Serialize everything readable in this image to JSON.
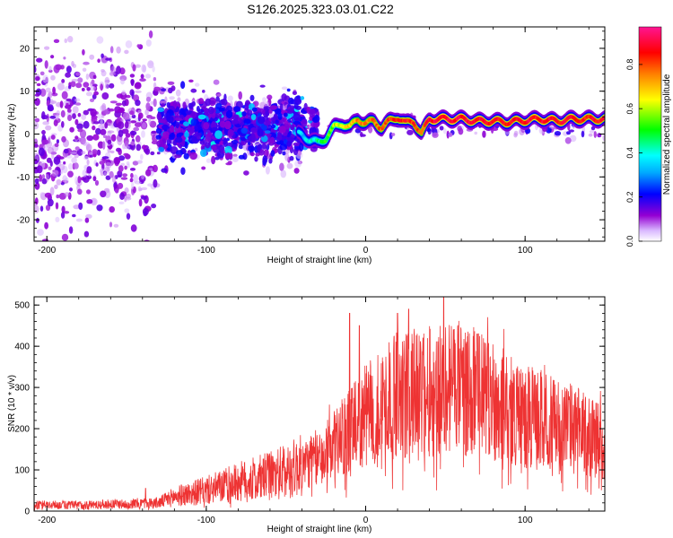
{
  "chart_data": [
    {
      "type": "heatmap",
      "title": "S126.2025.323.03.01.C22",
      "xlabel": "Height of straight line (km)",
      "ylabel": "Frequency (Hz)",
      "xlim": [
        -208,
        150
      ],
      "ylim": [
        -25,
        25
      ],
      "xticks": [
        -200,
        -100,
        0,
        100
      ],
      "xtick_labels": [
        "-200",
        "-100",
        "0",
        "100"
      ],
      "yticks": [
        -20,
        -10,
        0,
        10,
        20
      ],
      "ytick_labels": [
        "-20",
        "-10",
        "0",
        "10",
        "20"
      ],
      "ridge": {
        "x": [
          -40,
          -35,
          -30,
          -25,
          -20,
          -15,
          -10,
          -5,
          0,
          5,
          10,
          15,
          20,
          25,
          30,
          35,
          40,
          50,
          60,
          70,
          80,
          90,
          100,
          110,
          120,
          130,
          140,
          150
        ],
        "freq": [
          0,
          -1.5,
          -2,
          -1,
          1.5,
          2.5,
          1.5,
          3.5,
          2.5,
          3,
          1.5,
          3,
          4,
          2.5,
          3,
          0,
          3.5,
          3.5,
          3.5,
          3,
          3,
          2.8,
          3.2,
          3.5,
          3,
          3.5,
          3.5,
          3.5
        ],
        "amplitude": [
          0.35,
          0.4,
          0.45,
          0.5,
          0.6,
          0.65,
          0.7,
          0.75,
          0.78,
          0.8,
          0.82,
          0.85,
          0.85,
          0.88,
          0.86,
          0.8,
          0.92,
          0.93,
          0.92,
          0.9,
          0.9,
          0.88,
          0.9,
          0.92,
          0.9,
          0.9,
          0.88,
          0.88
        ]
      },
      "colorbar": {
        "label": "Normalized spectral amplitude",
        "range": [
          0,
          0.97
        ],
        "ticks": [
          0.0,
          0.2,
          0.4,
          0.6,
          0.8
        ],
        "tick_labels": [
          "0.0",
          "0.2",
          "0.4",
          "0.6",
          "0.8"
        ],
        "colors": [
          "#ffffff",
          "#9400d3",
          "#0000ff",
          "#00ffff",
          "#00ff00",
          "#ffff00",
          "#ff7f00",
          "#ff0000",
          "#ff1493"
        ]
      }
    },
    {
      "type": "line",
      "title": "",
      "xlabel": "Height of straight line (km)",
      "ylabel": "SNR (10 * v/v)",
      "xlim": [
        -208,
        150
      ],
      "ylim": [
        0,
        520
      ],
      "xticks": [
        -200,
        -100,
        0,
        100
      ],
      "xtick_labels": [
        "-200",
        "-100",
        "0",
        "100"
      ],
      "yticks": [
        0,
        100,
        200,
        300,
        400,
        500
      ],
      "ytick_labels": [
        "0",
        "100",
        "200",
        "300",
        "400",
        "500"
      ],
      "color": "#ee3333",
      "envelope": {
        "x": [
          -208,
          -180,
          -150,
          -130,
          -120,
          -100,
          -80,
          -60,
          -40,
          -30,
          -20,
          -10,
          0,
          10,
          20,
          30,
          40,
          50,
          60,
          70,
          80,
          90,
          100,
          110,
          120,
          130,
          140,
          150
        ],
        "y": [
          15,
          15,
          18,
          20,
          35,
          50,
          70,
          85,
          110,
          130,
          160,
          190,
          230,
          260,
          280,
          285,
          290,
          300,
          300,
          285,
          270,
          250,
          230,
          220,
          210,
          200,
          185,
          165
        ]
      },
      "spikes": [
        {
          "x": -138,
          "y": 55
        },
        {
          "x": -10,
          "y": 480
        },
        {
          "x": -4,
          "y": 450
        },
        {
          "x": 20,
          "y": 480
        },
        {
          "x": 27,
          "y": 490
        },
        {
          "x": 49,
          "y": 520
        },
        {
          "x": 55,
          "y": 440
        },
        {
          "x": 70,
          "y": 430
        },
        {
          "x": 36,
          "y": 420
        }
      ]
    }
  ]
}
